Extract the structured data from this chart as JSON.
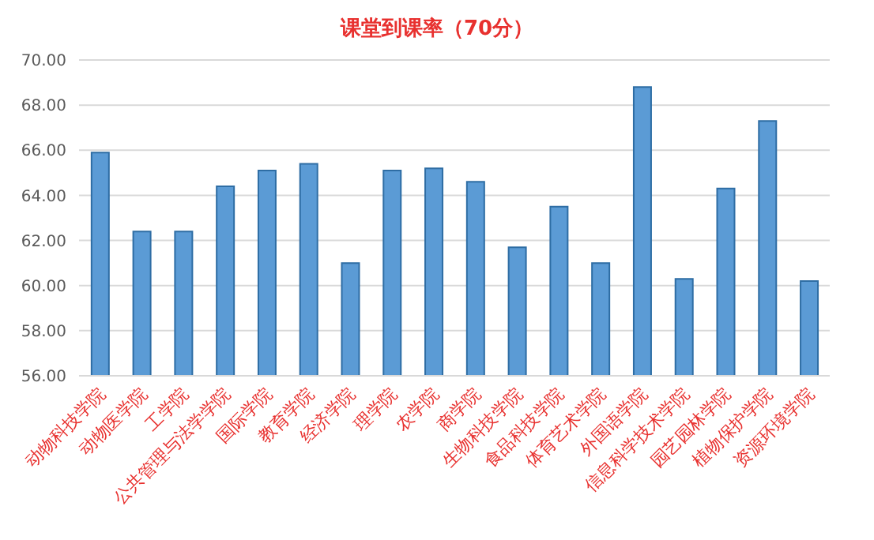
{
  "chart_data": {
    "type": "bar",
    "title": "课堂到课率（70分）",
    "categories": [
      "动物科技学院",
      "动物医学院",
      "工学院",
      "公共管理与法学学院",
      "国际学院",
      "教育学院",
      "经济学院",
      "理学院",
      "农学院",
      "商学院",
      "生物科技学院",
      "食品科技学院",
      "体育艺术学院",
      "外国语学院",
      "信息科学技术学院",
      "园艺园林学院",
      "植物保护学院",
      "资源环境学院"
    ],
    "values": [
      65.9,
      62.4,
      62.4,
      64.4,
      65.1,
      65.4,
      61.0,
      65.1,
      65.2,
      64.6,
      61.7,
      63.5,
      61.0,
      68.8,
      60.3,
      64.3,
      67.3,
      60.2
    ],
    "color": "#5b9bd5",
    "ylim": [
      56,
      70
    ],
    "yticks": [
      {
        "value": 56,
        "label": "56.00"
      },
      {
        "value": 58,
        "label": "58.00"
      },
      {
        "value": 60,
        "label": "60.00"
      },
      {
        "value": 62,
        "label": "62.00"
      },
      {
        "value": 64,
        "label": "64.00"
      },
      {
        "value": 66,
        "label": "66.00"
      },
      {
        "value": 68,
        "label": "68.00"
      },
      {
        "value": 70,
        "label": "70.00"
      }
    ],
    "grid": "y"
  }
}
